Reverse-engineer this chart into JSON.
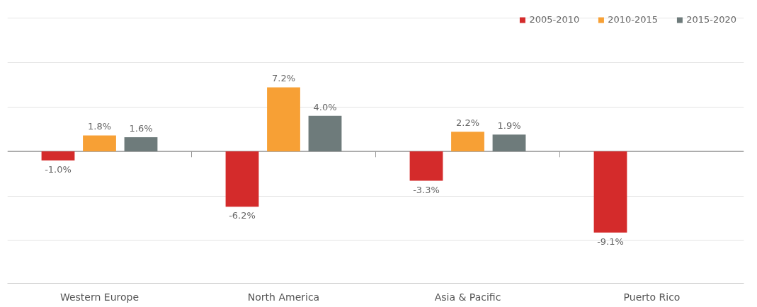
{
  "chart_data": {
    "type": "bar",
    "categories": [
      "Western Europe",
      "North America",
      "Asia & Pacific",
      "Puerto Rico"
    ],
    "series": [
      {
        "name": "2005-2010",
        "color": "#d42b2b",
        "values": [
          -1.0,
          -6.2,
          -3.3,
          -9.1
        ],
        "value_labels": [
          "-1.0%",
          "-6.2%",
          "-3.3%",
          "-9.1%"
        ]
      },
      {
        "name": "2010-2015",
        "color": "#f7a035",
        "values": [
          1.8,
          7.2,
          2.2,
          null
        ],
        "value_labels": [
          "1.8%",
          "7.2%",
          "2.2%",
          null
        ]
      },
      {
        "name": "2015-2020",
        "color": "#6e7b7b",
        "values": [
          1.6,
          4.0,
          1.9,
          null
        ],
        "value_labels": [
          "1.6%",
          "4.0%",
          "1.9%",
          null
        ]
      }
    ],
    "tick_labels": "x",
    "grid": "y",
    "legend": "top right"
  }
}
